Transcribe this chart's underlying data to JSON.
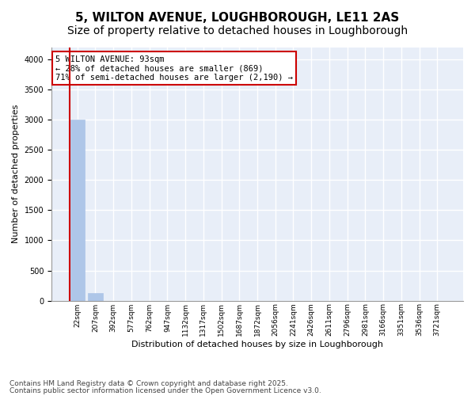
{
  "title_line1": "5, WILTON AVENUE, LOUGHBOROUGH, LE11 2AS",
  "title_line2": "Size of property relative to detached houses in Loughborough",
  "xlabel": "Distribution of detached houses by size in Loughborough",
  "ylabel": "Number of detached properties",
  "bins": [
    "22sqm",
    "207sqm",
    "392sqm",
    "577sqm",
    "762sqm",
    "947sqm",
    "1132sqm",
    "1317sqm",
    "1502sqm",
    "1687sqm",
    "1872sqm",
    "2056sqm",
    "2241sqm",
    "2426sqm",
    "2611sqm",
    "2796sqm",
    "2981sqm",
    "3166sqm",
    "3351sqm",
    "3536sqm",
    "3721sqm"
  ],
  "values": [
    3000,
    130,
    0,
    0,
    0,
    0,
    0,
    0,
    0,
    0,
    0,
    0,
    0,
    0,
    0,
    0,
    0,
    0,
    0,
    0,
    0
  ],
  "bar_color": "#aec6e8",
  "bar_edge_color": "#aec6e8",
  "bg_color": "#e8eef8",
  "grid_color": "#ffffff",
  "vline_color": "#cc0000",
  "annotation_text": "5 WILTON AVENUE: 93sqm\n← 28% of detached houses are smaller (869)\n71% of semi-detached houses are larger (2,190) →",
  "annotation_box_color": "#cc0000",
  "annotation_text_color": "#000000",
  "ylim": [
    0,
    4200
  ],
  "yticks": [
    0,
    500,
    1000,
    1500,
    2000,
    2500,
    3000,
    3500,
    4000
  ],
  "footnote_line1": "Contains HM Land Registry data © Crown copyright and database right 2025.",
  "footnote_line2": "Contains public sector information licensed under the Open Government Licence v3.0.",
  "title_fontsize": 11,
  "subtitle_fontsize": 10,
  "axis_fontsize": 8,
  "tick_fontsize": 7,
  "footnote_fontsize": 6.5
}
